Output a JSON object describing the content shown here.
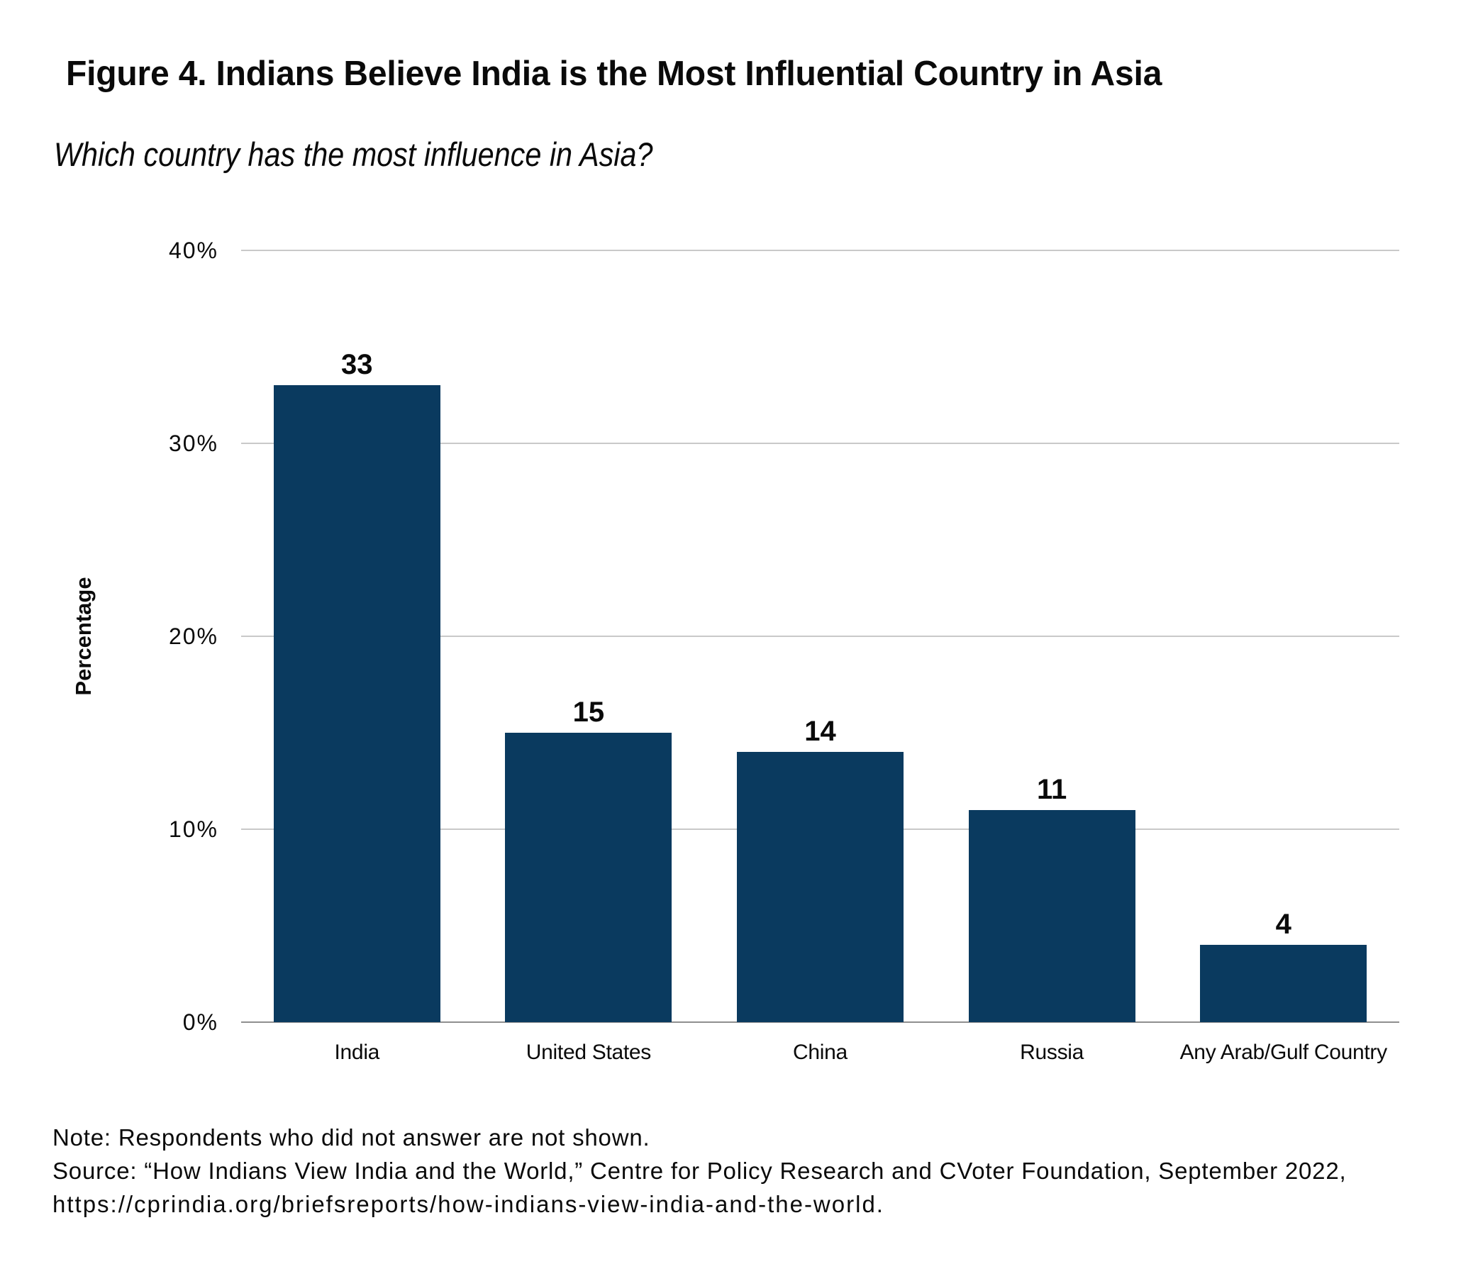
{
  "figure": {
    "title": "Figure 4. Indians Believe India is the Most Influential Country in Asia",
    "subtitle": "Which country has the most influence in Asia?",
    "note_lines": [
      "Note: Respondents who did not answer are not shown.",
      "Source: “How Indians View India and the World,” Centre for Policy Research and CVoter Foundation, September 2022,",
      "https://cprindia.org/briefsreports/how-indians-view-india-and-the-world."
    ]
  },
  "chart_data": {
    "type": "bar",
    "title": "Figure 4. Indians Believe India is the Most Influential Country in Asia",
    "subtitle": "Which country has the most influence in Asia?",
    "categories": [
      "India",
      "United States",
      "China",
      "Russia",
      "Any Arab/Gulf Country"
    ],
    "values": [
      33,
      15,
      14,
      11,
      4
    ],
    "value_labels": [
      "33",
      "15",
      "14",
      "11",
      "4"
    ],
    "xlabel": "",
    "ylabel": "Percentage",
    "ylim": [
      0,
      40
    ],
    "yticks": [
      0,
      10,
      20,
      30,
      40
    ],
    "ytick_labels": [
      "0%",
      "10%",
      "20%",
      "30%",
      "40%"
    ],
    "grid": "horizontal",
    "legend": "none",
    "bar_color": "#0a3a5f"
  }
}
